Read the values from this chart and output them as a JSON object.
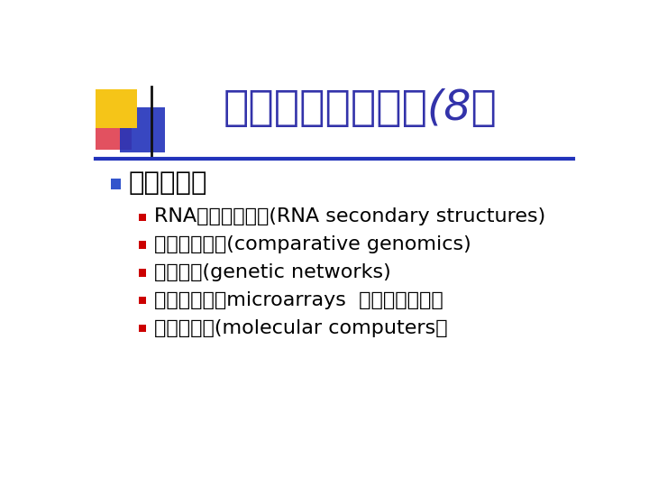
{
  "title": "生物資訊相關主題(8）",
  "title_color": "#3333aa",
  "title_fontsize": 34,
  "bg_color": "#ffffff",
  "level1_bullet": "其他課題：",
  "level1_color": "#000000",
  "level1_fontsize": 21,
  "level1_bullet_color": "#3355cc",
  "level2_items": [
    "RNA二維結構預測(RNA secondary structures)",
    "比較基因組學(comparative genomics)",
    "基因網路(genetic networks)",
    "微陣列晶片（microarrays  或稱基因晶片）",
    "分子計算機(molecular computers）"
  ],
  "level2_color": "#000000",
  "level2_fontsize": 16,
  "level2_bullet_color": "#cc0000",
  "deco_yellow": "#f5c518",
  "deco_blue_dark": "#2233bb",
  "deco_red": "#dd3344",
  "separator_color": "#2233bb"
}
